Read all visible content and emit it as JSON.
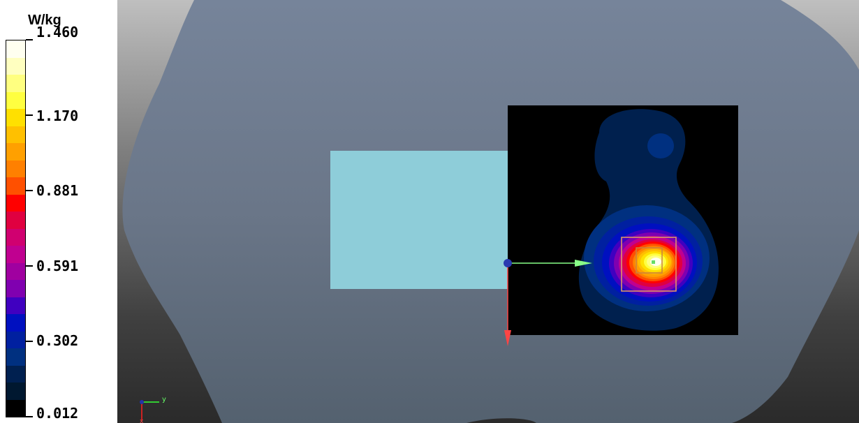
{
  "legend": {
    "unit": "W/kg",
    "ticks": [
      "1.460",
      "1.170",
      "0.881",
      "0.591",
      "0.302",
      "0.012"
    ],
    "bands": [
      "#fffff0",
      "#ffffc0",
      "#ffff80",
      "#ffff40",
      "#ffe000",
      "#ffc000",
      "#ffa000",
      "#ff8000",
      "#ff5000",
      "#ff0000",
      "#e00040",
      "#d00070",
      "#c00090",
      "#a000a0",
      "#8000b0",
      "#4000c0",
      "#0010c0",
      "#0020a0",
      "#003080",
      "#002050",
      "#001830",
      "#000000"
    ]
  },
  "axes": {
    "y_label": "y",
    "x_label": "x"
  },
  "colors": {
    "phantom": "#6f7d8d",
    "probe_source": "#8ecdd9",
    "scan_background": "#000000",
    "arrow_y": "#88ff88",
    "arrow_x": "#ff4444"
  }
}
